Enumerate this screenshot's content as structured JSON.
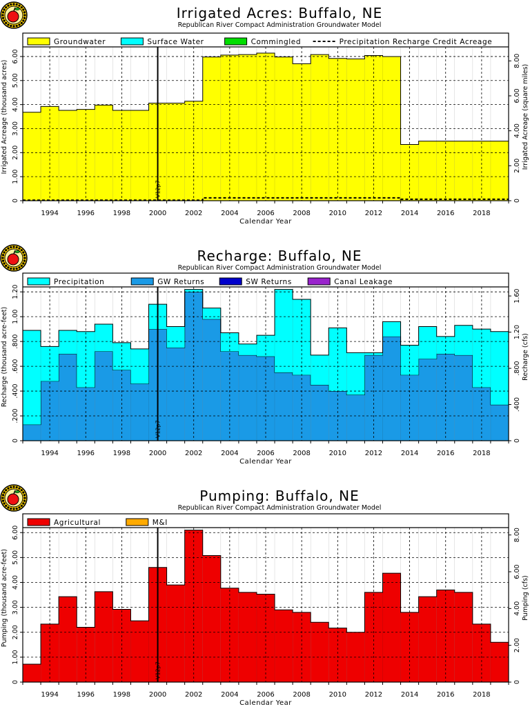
{
  "chart_data": [
    {
      "type": "area",
      "title": "Irrigated Acres: Buffalo, NE",
      "subtitle": "Republican River Compact Administration Groundwater Model",
      "xlabel": "Calendar Year",
      "ylabel": "Irrigated Acreage (thousand acres)",
      "ylabel_right": "Irrigated Acreage (square miles)",
      "xlim": [
        1993,
        2020
      ],
      "ylim": [
        0,
        6.4
      ],
      "yticks": [
        "0",
        "1.00",
        "2.00",
        "3.00",
        "4.00",
        "5.00",
        "6.00"
      ],
      "yticks_right": [
        "0",
        "2.00",
        "4.00",
        "6.00",
        "8.00"
      ],
      "xticks": [
        "1994",
        "1996",
        "1998",
        "2000",
        "2002",
        "2004",
        "2006",
        "2008",
        "2010",
        "2012",
        "2014",
        "2016",
        "2018"
      ],
      "annotation": "V12p7",
      "annotation_x": 2000.5,
      "grid": true,
      "legend_position": "top",
      "legend": [
        {
          "name": "Groundwater",
          "color": "#ffff00",
          "kind": "box"
        },
        {
          "name": "Surface Water",
          "color": "#00ffff",
          "kind": "box"
        },
        {
          "name": "Commingled",
          "color": "#00dd00",
          "kind": "box"
        },
        {
          "name": "Precipitation Recharge Credit Acreage",
          "color": "#000000",
          "kind": "dash"
        }
      ],
      "years": [
        1993,
        1994,
        1995,
        1996,
        1997,
        1998,
        1999,
        2000,
        2001,
        2002,
        2003,
        2004,
        2005,
        2006,
        2007,
        2008,
        2009,
        2010,
        2011,
        2012,
        2013,
        2014,
        2015,
        2016,
        2017,
        2018,
        2019
      ],
      "series": [
        {
          "name": "Groundwater",
          "color": "#ffff00",
          "values": [
            3.68,
            3.92,
            3.76,
            3.8,
            3.98,
            3.76,
            3.76,
            4.06,
            4.06,
            4.14,
            5.98,
            6.06,
            6.08,
            6.14,
            5.98,
            5.7,
            6.08,
            5.92,
            5.9,
            6.04,
            6.0,
            2.34,
            2.48,
            2.48,
            2.48,
            2.48,
            2.48
          ]
        }
      ],
      "dashed_series": {
        "name": "Precipitation Recharge Credit Acreage",
        "values": [
          0.02,
          0.02,
          0.02,
          0.02,
          0.02,
          0.02,
          0.02,
          0.02,
          0.02,
          0.02,
          0.12,
          0.12,
          0.12,
          0.12,
          0.12,
          0.12,
          0.12,
          0.12,
          0.12,
          0.12,
          0.12,
          0.06,
          0.06,
          0.06,
          0.06,
          0.06,
          0.06
        ]
      }
    },
    {
      "type": "area",
      "title": "Recharge: Buffalo, NE",
      "subtitle": "Republican River Compact Administration Groundwater Model",
      "xlabel": "Calendar Year",
      "ylabel": "Recharge (thousand acre-feet)",
      "ylabel_right": "Recharge (cfs)",
      "xlim": [
        1993,
        2020
      ],
      "ylim": [
        0,
        1.24
      ],
      "yticks": [
        "0",
        ".200",
        ".400",
        ".600",
        ".800",
        "1.00",
        "1.20"
      ],
      "yticks_right": [
        "0",
        ".400",
        ".800",
        "1.20",
        "1.60"
      ],
      "xticks": [
        "1994",
        "1996",
        "1998",
        "2000",
        "2002",
        "2004",
        "2006",
        "2008",
        "2010",
        "2012",
        "2014",
        "2016",
        "2018"
      ],
      "annotation": "V12p7",
      "annotation_x": 2000.5,
      "grid": true,
      "legend_position": "top",
      "legend": [
        {
          "name": "Precipitation",
          "color": "#00ffff",
          "kind": "box"
        },
        {
          "name": "GW Returns",
          "color": "#1a9ae6",
          "kind": "box"
        },
        {
          "name": "SW Returns",
          "color": "#0000cc",
          "kind": "box"
        },
        {
          "name": "Canal Leakage",
          "color": "#9922cc",
          "kind": "box"
        }
      ],
      "years": [
        1993,
        1994,
        1995,
        1996,
        1997,
        1998,
        1999,
        2000,
        2001,
        2002,
        2003,
        2004,
        2005,
        2006,
        2007,
        2008,
        2009,
        2010,
        2011,
        2012,
        2013,
        2014,
        2015,
        2016,
        2017,
        2018,
        2019
      ],
      "series": [
        {
          "name": "GW Returns",
          "color": "#1a9ae6",
          "values": [
            0.13,
            0.48,
            0.7,
            0.43,
            0.72,
            0.57,
            0.46,
            0.9,
            0.75,
            1.2,
            0.98,
            0.72,
            0.69,
            0.68,
            0.55,
            0.53,
            0.45,
            0.4,
            0.37,
            0.69,
            0.84,
            0.53,
            0.66,
            0.7,
            0.69,
            0.43,
            0.29
          ]
        },
        {
          "name": "Precipitation",
          "color": "#00ffff",
          "values": [
            0.76,
            0.28,
            0.19,
            0.45,
            0.22,
            0.22,
            0.28,
            0.2,
            0.17,
            0.02,
            0.09,
            0.15,
            0.09,
            0.17,
            0.67,
            0.61,
            0.24,
            0.51,
            0.34,
            0.02,
            0.12,
            0.24,
            0.26,
            0.14,
            0.24,
            0.47,
            0.59
          ]
        }
      ]
    },
    {
      "type": "area",
      "title": "Pumping: Buffalo, NE",
      "subtitle": "Republican River Compact Administration Groundwater Model",
      "xlabel": "Calendar Year",
      "ylabel": "Pumping (thousand acre-feet)",
      "ylabel_right": "Pumping (cfs)",
      "xlim": [
        1993,
        2020
      ],
      "ylim": [
        0,
        6.2
      ],
      "yticks": [
        "0",
        "1.00",
        "2.00",
        "3.00",
        "4.00",
        "5.00",
        "6.00"
      ],
      "yticks_right": [
        "0",
        "2.00",
        "4.00",
        "6.00",
        "8.00"
      ],
      "xticks": [
        "1994",
        "1996",
        "1998",
        "2000",
        "2002",
        "2004",
        "2006",
        "2008",
        "2010",
        "2012",
        "2014",
        "2016",
        "2018"
      ],
      "annotation": "V12p7",
      "annotation_x": 2000.5,
      "grid": true,
      "legend_position": "top",
      "legend": [
        {
          "name": "Agricultural",
          "color": "#ee0000",
          "kind": "box"
        },
        {
          "name": "M&I",
          "color": "#ffaa00",
          "kind": "box"
        }
      ],
      "years": [
        1993,
        1994,
        1995,
        1996,
        1997,
        1998,
        1999,
        2000,
        2001,
        2002,
        2003,
        2004,
        2005,
        2006,
        2007,
        2008,
        2009,
        2010,
        2011,
        2012,
        2013,
        2014,
        2015,
        2016,
        2017,
        2018,
        2019
      ],
      "series": [
        {
          "name": "Agricultural",
          "color": "#ee0000",
          "values": [
            0.72,
            2.33,
            3.43,
            2.2,
            3.63,
            2.92,
            2.46,
            4.6,
            3.9,
            6.1,
            5.08,
            3.77,
            3.6,
            3.53,
            2.9,
            2.8,
            2.4,
            2.17,
            2.0,
            3.6,
            4.37,
            2.8,
            3.43,
            3.7,
            3.6,
            2.33,
            1.6
          ]
        }
      ]
    }
  ]
}
